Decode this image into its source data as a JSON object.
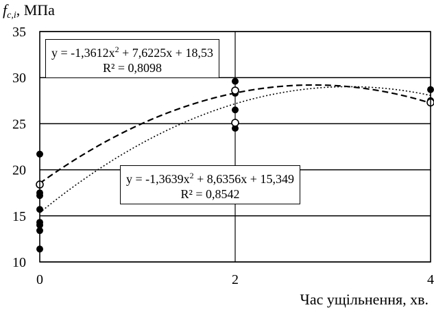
{
  "chart_data": {
    "type": "scatter",
    "ylabel": {
      "symbol": "f",
      "subscript": "c,i",
      "unit": ", МПа"
    },
    "xlabel": "Час ущільнення, хв.",
    "xlim": [
      0,
      4
    ],
    "ylim": [
      10,
      35
    ],
    "xticks": [
      "0",
      "2",
      "4"
    ],
    "yticks": [
      "10",
      "15",
      "20",
      "25",
      "30",
      "35"
    ],
    "grid": true,
    "series": [
      {
        "marker": "filled-circle",
        "color": "#000000",
        "points": [
          [
            0,
            21.7
          ],
          [
            0,
            17.5
          ],
          [
            0,
            17.2
          ],
          [
            0,
            15.7
          ],
          [
            0,
            14.3
          ],
          [
            0,
            14.0
          ],
          [
            0,
            13.4
          ],
          [
            0,
            11.4
          ],
          [
            2,
            29.6
          ],
          [
            2,
            28.3
          ],
          [
            2,
            26.5
          ],
          [
            2,
            24.5
          ],
          [
            4,
            28.7
          ],
          [
            4,
            27.5
          ]
        ]
      },
      {
        "marker": "open-circle",
        "color": "#000000",
        "points": [
          [
            0,
            18.4
          ],
          [
            2,
            28.6
          ],
          [
            2,
            25.1
          ],
          [
            4,
            27.3
          ]
        ]
      }
    ],
    "trendlines": [
      {
        "style": "dashed",
        "a": -1.3612,
        "b": 7.6225,
        "c": 18.53,
        "equation_prefix": "y = -1,3612x",
        "equation_suffix": " + 7,6225x + 18,53",
        "r2": "R² = 0,8098"
      },
      {
        "style": "dotted",
        "a": -1.3639,
        "b": 8.6356,
        "c": 15.349,
        "equation_prefix": "y = -1,3639x",
        "equation_suffix": " + 8,6356x + 15,349",
        "r2": "R² = 0,8542"
      }
    ]
  }
}
